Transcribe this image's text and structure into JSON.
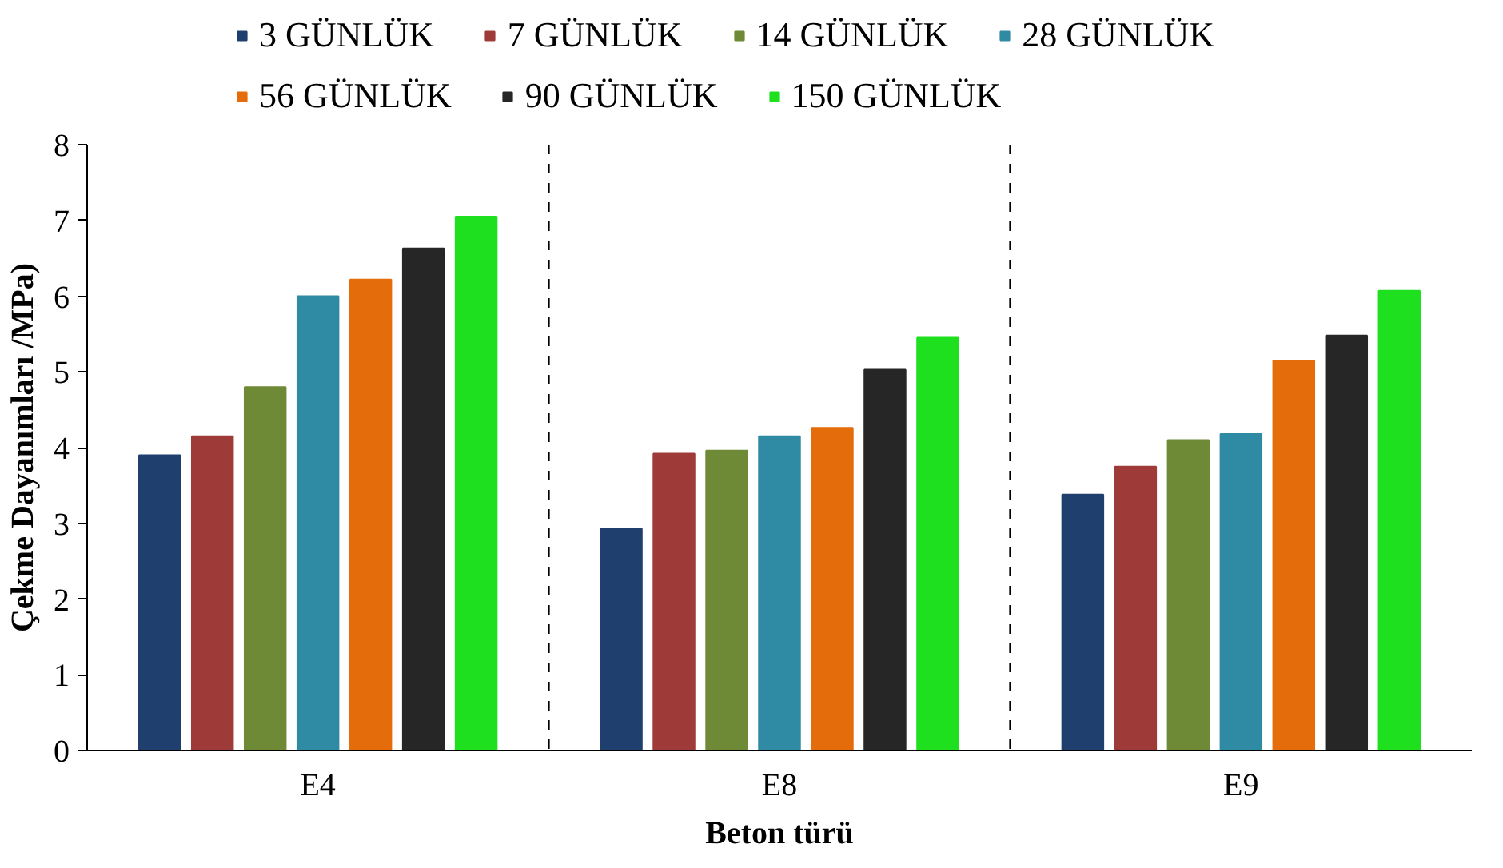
{
  "chart_data": {
    "type": "bar",
    "xlabel": "Beton türü",
    "ylabel": "Çekme Dayanımları /MPa)",
    "categories": [
      "E4",
      "E8",
      "E9"
    ],
    "series": [
      {
        "name": "3 GÜNLÜK",
        "color": "#1f3f6e",
        "values": [
          3.9,
          2.93,
          3.38
        ]
      },
      {
        "name": "7 GÜNLÜK",
        "color": "#9e3b38",
        "values": [
          4.15,
          3.92,
          3.75
        ]
      },
      {
        "name": "14 GÜNLÜK",
        "color": "#6f8a36",
        "values": [
          4.8,
          3.96,
          4.1
        ]
      },
      {
        "name": "28 GÜNLÜK",
        "color": "#2f8aa3",
        "values": [
          6.0,
          4.15,
          4.18
        ]
      },
      {
        "name": "56 GÜNLÜK",
        "color": "#e46c0a",
        "values": [
          6.22,
          4.26,
          5.15
        ]
      },
      {
        "name": "90 GÜNLÜK",
        "color": "#262626",
        "values": [
          6.63,
          5.03,
          5.48
        ]
      },
      {
        "name": "150 GÜNLÜK",
        "color": "#1fe01f",
        "values": [
          7.05,
          5.45,
          6.07
        ]
      }
    ],
    "ylim": [
      0,
      8
    ],
    "yticks": [
      0,
      1,
      2,
      3,
      4,
      5,
      6,
      7,
      8
    ],
    "grid": false,
    "legend": "top"
  }
}
